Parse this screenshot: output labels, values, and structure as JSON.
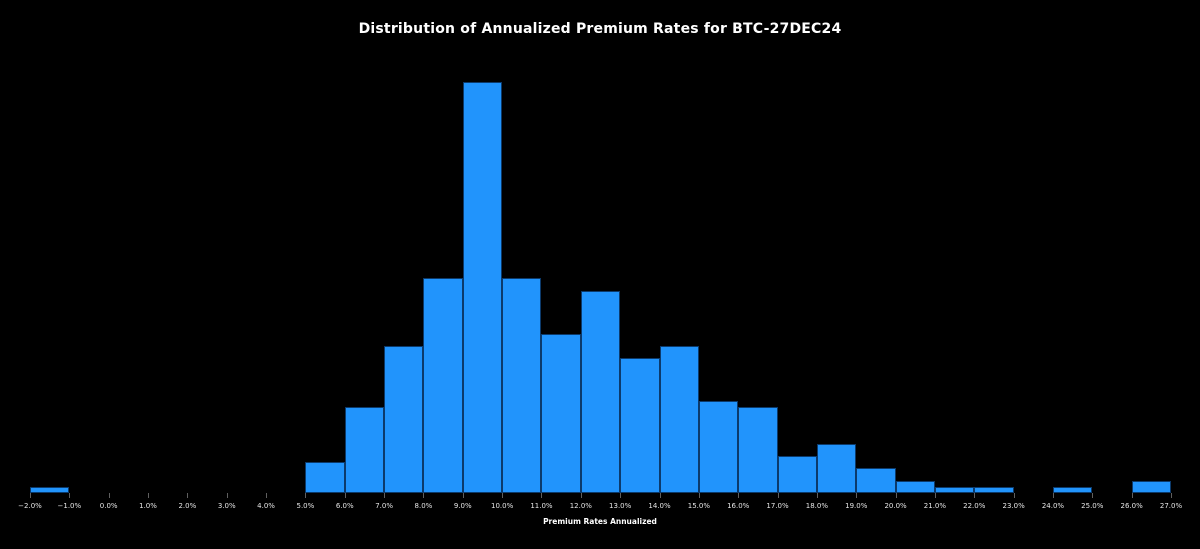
{
  "chart_data": {
    "type": "bar",
    "subtype": "histogram",
    "title": "Distribution of Annualized Premium Rates for BTC-27DEC24",
    "xlabel": "Premium Rates Annualized",
    "ylabel": "",
    "x_tick_labels": [
      "−2.0%",
      "−1.0%",
      "0.0%",
      "1.0%",
      "2.0%",
      "3.0%",
      "4.0%",
      "5.0%",
      "6.0%",
      "7.0%",
      "8.0%",
      "9.0%",
      "10.0%",
      "11.0%",
      "12.0%",
      "13.0%",
      "14.0%",
      "15.0%",
      "16.0%",
      "17.0%",
      "18.0%",
      "19.0%",
      "20.0%",
      "21.0%",
      "22.0%",
      "23.0%",
      "24.0%",
      "25.0%",
      "26.0%",
      "27.0%"
    ],
    "bin_width_pct": 1.0,
    "bin_edges_pct": [
      -2,
      -1,
      0,
      1,
      2,
      3,
      4,
      5,
      6,
      7,
      8,
      9,
      10,
      11,
      12,
      13,
      14,
      15,
      16,
      17,
      18,
      19,
      20,
      21,
      22,
      23,
      24,
      25,
      26,
      27
    ],
    "counts": [
      1,
      0,
      0,
      0,
      0,
      0,
      0,
      5,
      14,
      24,
      35,
      67,
      35,
      26,
      33,
      22,
      24,
      15,
      14,
      6,
      8,
      4,
      2,
      1,
      1,
      0,
      1,
      0,
      2
    ],
    "xlim_pct": [
      -2,
      27
    ],
    "ylim": [
      0,
      68
    ],
    "y_axis_visible": false,
    "grid": false,
    "legend": null,
    "colors": {
      "background": "#000000",
      "bar_fill": "#2194fc",
      "bar_edge": "#0c3a6b",
      "title_text": "#ffffff",
      "tick_label_text": "#e6e6e6",
      "tick_mark": "#5f5f5f",
      "axis_label_text": "#ffffff"
    }
  }
}
